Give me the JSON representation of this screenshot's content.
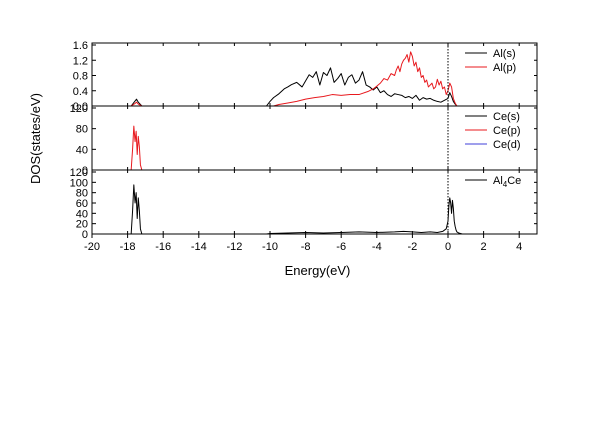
{
  "chart_data": [
    {
      "type": "line",
      "panel": "top",
      "xlim": [
        -20,
        5
      ],
      "ylim": [
        0,
        1.6
      ],
      "yticks": [
        "0.0",
        "0.4",
        "0.8",
        "1.2",
        "1.6"
      ],
      "ytick_values": [
        0,
        0.4,
        0.8,
        1.2,
        1.6
      ],
      "legend_position": "top-right",
      "series": [
        {
          "name": "Al(s)",
          "color": "#000000",
          "x": [
            -20,
            -17.8,
            -17.6,
            -17.5,
            -17.4,
            -17.2,
            -10.2,
            -10,
            -9.8,
            -9.5,
            -9.2,
            -9,
            -8.8,
            -8.5,
            -8.2,
            -8,
            -7.8,
            -7.6,
            -7.4,
            -7.2,
            -7,
            -6.8,
            -6.6,
            -6.4,
            -6.2,
            -6,
            -5.8,
            -5.6,
            -5.4,
            -5.2,
            -5,
            -4.8,
            -4.6,
            -4.4,
            -4.2,
            -4,
            -3.8,
            -3.6,
            -3.4,
            -3.2,
            -3,
            -2.8,
            -2.6,
            -2.4,
            -2.2,
            -2,
            -1.8,
            -1.6,
            -1.4,
            -1.2,
            -1,
            -0.8,
            -0.6,
            -0.4,
            -0.2,
            0,
            0.1,
            0.2,
            0.3,
            0.4,
            0.5,
            0.7,
            1,
            5
          ],
          "y": [
            0,
            0,
            0.12,
            0.18,
            0.1,
            0,
            0,
            0.12,
            0.22,
            0.32,
            0.45,
            0.5,
            0.56,
            0.62,
            0.5,
            0.66,
            0.82,
            0.75,
            0.9,
            0.55,
            0.88,
            0.8,
            1.0,
            0.62,
            0.72,
            0.85,
            0.55,
            0.75,
            0.82,
            0.6,
            0.68,
            0.9,
            0.55,
            0.5,
            0.42,
            0.5,
            0.35,
            0.4,
            0.3,
            0.25,
            0.32,
            0.3,
            0.28,
            0.22,
            0.25,
            0.2,
            0.28,
            0.15,
            0.22,
            0.18,
            0.2,
            0.15,
            0.12,
            0.1,
            0.15,
            0.2,
            0.35,
            0.25,
            0.12,
            0.05,
            0,
            0,
            0,
            0
          ]
        },
        {
          "name": "Al(p)",
          "color": "#e8191e",
          "x": [
            -20,
            -17.8,
            -17.6,
            -17.5,
            -17.4,
            -17.2,
            -9.8,
            -9.5,
            -9,
            -8.5,
            -8,
            -7.5,
            -7,
            -6.5,
            -6,
            -5.5,
            -5,
            -4.5,
            -4.2,
            -4,
            -3.8,
            -3.6,
            -3.4,
            -3.2,
            -3,
            -2.9,
            -2.8,
            -2.7,
            -2.6,
            -2.5,
            -2.4,
            -2.3,
            -2.2,
            -2.1,
            -2,
            -1.9,
            -1.8,
            -1.7,
            -1.6,
            -1.5,
            -1.4,
            -1.3,
            -1.2,
            -1.1,
            -1,
            -0.9,
            -0.8,
            -0.7,
            -0.6,
            -0.5,
            -0.4,
            -0.3,
            -0.2,
            -0.1,
            0,
            0.1,
            0.2,
            0.3,
            0.4,
            0.5,
            0.7,
            1,
            5
          ],
          "y": [
            0,
            0,
            0.06,
            0.1,
            0.05,
            0,
            0,
            0.04,
            0.08,
            0.12,
            0.18,
            0.22,
            0.25,
            0.3,
            0.28,
            0.3,
            0.3,
            0.38,
            0.45,
            0.52,
            0.6,
            0.72,
            0.68,
            0.85,
            0.8,
            0.95,
            1.05,
            0.9,
            1.1,
            1.2,
            1.25,
            1.35,
            1.15,
            1.42,
            1.3,
            1.05,
            1.15,
            0.9,
            1.0,
            0.75,
            0.8,
            0.62,
            0.68,
            0.5,
            0.55,
            0.6,
            0.45,
            0.5,
            0.7,
            0.55,
            0.65,
            0.45,
            0.5,
            0.3,
            0.4,
            0.6,
            0.5,
            0.2,
            0.08,
            0,
            0,
            0,
            0
          ]
        }
      ]
    },
    {
      "type": "line",
      "panel": "middle",
      "xlim": [
        -20,
        5
      ],
      "ylim": [
        0,
        120
      ],
      "yticks": [
        "0",
        "40",
        "80",
        "120"
      ],
      "ytick_values": [
        0,
        40,
        80,
        120
      ],
      "legend_position": "top-right",
      "series": [
        {
          "name": "Ce(s)",
          "color": "#000000",
          "x": [
            -20,
            5
          ],
          "y": [
            0,
            0
          ]
        },
        {
          "name": "Ce(p)",
          "color": "#e8191e",
          "x": [
            -20,
            -17.8,
            -17.72,
            -17.65,
            -17.58,
            -17.52,
            -17.46,
            -17.4,
            -17.34,
            -17.28,
            -17.2,
            5
          ],
          "y": [
            0,
            0,
            40,
            85,
            55,
            75,
            30,
            65,
            45,
            10,
            0,
            0
          ]
        },
        {
          "name": "Ce(d)",
          "color": "#3f3fd8",
          "x": [
            -20,
            5
          ],
          "y": [
            0,
            0
          ]
        }
      ]
    },
    {
      "type": "line",
      "panel": "bottom",
      "xlim": [
        -20,
        5
      ],
      "ylim": [
        0,
        120
      ],
      "yticks": [
        "0",
        "20",
        "40",
        "60",
        "80",
        "100",
        "120"
      ],
      "ytick_values": [
        0,
        20,
        40,
        60,
        80,
        100,
        120
      ],
      "legend_position": "top-right",
      "series": [
        {
          "name_main": "Al",
          "name_sub": "4",
          "name_tail": "Ce",
          "color": "#000000",
          "x": [
            -20,
            -17.8,
            -17.72,
            -17.65,
            -17.58,
            -17.52,
            -17.46,
            -17.4,
            -17.34,
            -17.28,
            -17.2,
            -10.2,
            -10,
            -9,
            -8,
            -7,
            -6,
            -5,
            -4,
            -3,
            -2.5,
            -2,
            -1.5,
            -1,
            -0.6,
            -0.3,
            -0.1,
            0,
            0.05,
            0.1,
            0.15,
            0.2,
            0.25,
            0.3,
            0.35,
            0.4,
            0.45,
            0.5,
            0.6,
            0.8,
            1,
            5
          ],
          "y": [
            0,
            0,
            45,
            95,
            60,
            80,
            30,
            70,
            45,
            10,
            0,
            0,
            1,
            2,
            3,
            2,
            3,
            4,
            3,
            4,
            5,
            4,
            3,
            4,
            3,
            5,
            10,
            25,
            55,
            70,
            60,
            40,
            65,
            50,
            25,
            15,
            8,
            4,
            2,
            0,
            0,
            0
          ]
        }
      ]
    }
  ],
  "axes": {
    "xlabel": "Energy(eV)",
    "ylabel": "DOS(states/eV)",
    "xticks": [
      "-20",
      "-18",
      "-16",
      "-14",
      "-12",
      "-10",
      "-8",
      "-6",
      "-4",
      "-2",
      "0",
      "2",
      "4"
    ],
    "xtick_values": [
      -20,
      -18,
      -16,
      -14,
      -12,
      -10,
      -8,
      -6,
      -4,
      -2,
      0,
      2,
      4
    ],
    "fermi_level": 0
  }
}
